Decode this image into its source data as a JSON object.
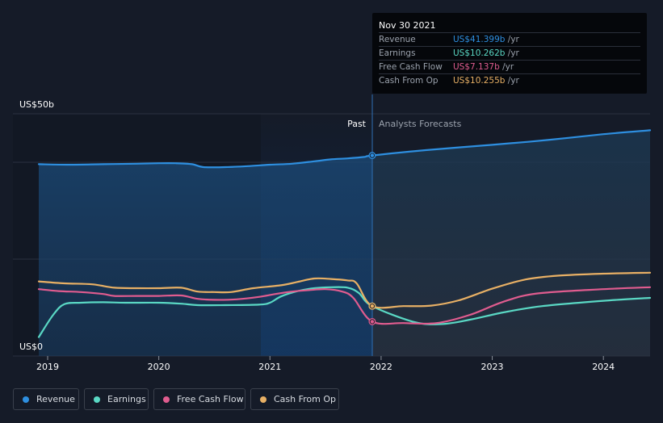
{
  "tooltip": {
    "date": "Nov 30 2021",
    "rows": [
      {
        "label": "Revenue",
        "value": "US$41.399b",
        "unit": "/yr",
        "color": "#2e8fe0"
      },
      {
        "label": "Earnings",
        "value": "US$10.262b",
        "unit": "/yr",
        "color": "#5ad8c4"
      },
      {
        "label": "Free Cash Flow",
        "value": "US$7.137b",
        "unit": "/yr",
        "color": "#e05c8f"
      },
      {
        "label": "Cash From Op",
        "value": "US$10.255b",
        "unit": "/yr",
        "color": "#e8b065"
      }
    ]
  },
  "legend": [
    {
      "label": "Revenue",
      "color": "#2e8fe0"
    },
    {
      "label": "Earnings",
      "color": "#5ad8c4"
    },
    {
      "label": "Free Cash Flow",
      "color": "#e05c8f"
    },
    {
      "label": "Cash From Op",
      "color": "#e8b065"
    }
  ],
  "chart_data": {
    "type": "line",
    "y_unit_labels": {
      "top": "US$50b",
      "bottom": "US$0"
    },
    "ylim": [
      0,
      50
    ],
    "xlim": [
      2018.92,
      2024.42
    ],
    "x_ticks": [
      2019,
      2020,
      2021,
      2022,
      2023,
      2024
    ],
    "x_tick_labels": [
      "2019",
      "2020",
      "2021",
      "2022",
      "2023",
      "2024"
    ],
    "divider_x": 2021.92,
    "past_label": "Past",
    "forecast_label": "Analysts Forecasts",
    "highlight_point_x": 2021.92,
    "series": [
      {
        "name": "Revenue",
        "color": "#2e8fe0",
        "fill": true,
        "points": [
          [
            2018.92,
            39.6
          ],
          [
            2019.2,
            39.5
          ],
          [
            2019.5,
            39.6
          ],
          [
            2019.8,
            39.7
          ],
          [
            2020.0,
            39.8
          ],
          [
            2020.15,
            39.8
          ],
          [
            2020.3,
            39.6
          ],
          [
            2020.4,
            39.0
          ],
          [
            2020.6,
            39.0
          ],
          [
            2020.8,
            39.2
          ],
          [
            2021.0,
            39.5
          ],
          [
            2021.2,
            39.7
          ],
          [
            2021.4,
            40.2
          ],
          [
            2021.55,
            40.6
          ],
          [
            2021.7,
            40.8
          ],
          [
            2021.85,
            41.1
          ],
          [
            2021.92,
            41.4
          ],
          [
            2022.4,
            42.5
          ],
          [
            2023.0,
            43.6
          ],
          [
            2023.5,
            44.6
          ],
          [
            2024.0,
            45.8
          ],
          [
            2024.42,
            46.6
          ]
        ]
      },
      {
        "name": "Earnings",
        "color": "#5ad8c4",
        "fill": false,
        "points": [
          [
            2018.92,
            3.9
          ],
          [
            2019.05,
            8.5
          ],
          [
            2019.15,
            10.7
          ],
          [
            2019.3,
            11.0
          ],
          [
            2019.5,
            11.1
          ],
          [
            2019.7,
            11.0
          ],
          [
            2020.0,
            11.0
          ],
          [
            2020.2,
            10.8
          ],
          [
            2020.35,
            10.5
          ],
          [
            2020.6,
            10.5
          ],
          [
            2020.9,
            10.6
          ],
          [
            2021.0,
            11.0
          ],
          [
            2021.1,
            12.3
          ],
          [
            2021.25,
            13.4
          ],
          [
            2021.4,
            14.0
          ],
          [
            2021.55,
            14.2
          ],
          [
            2021.7,
            14.1
          ],
          [
            2021.8,
            13.0
          ],
          [
            2021.92,
            10.3
          ],
          [
            2022.3,
            7.0
          ],
          [
            2022.55,
            6.6
          ],
          [
            2022.8,
            7.5
          ],
          [
            2023.1,
            9.0
          ],
          [
            2023.45,
            10.3
          ],
          [
            2024.0,
            11.4
          ],
          [
            2024.42,
            12.0
          ]
        ]
      },
      {
        "name": "Free Cash Flow",
        "color": "#e05c8f",
        "fill": false,
        "points": [
          [
            2018.92,
            13.8
          ],
          [
            2019.1,
            13.4
          ],
          [
            2019.3,
            13.2
          ],
          [
            2019.5,
            12.8
          ],
          [
            2019.6,
            12.4
          ],
          [
            2019.8,
            12.4
          ],
          [
            2020.0,
            12.4
          ],
          [
            2020.2,
            12.5
          ],
          [
            2020.35,
            11.8
          ],
          [
            2020.5,
            11.6
          ],
          [
            2020.7,
            11.7
          ],
          [
            2020.9,
            12.2
          ],
          [
            2021.05,
            12.8
          ],
          [
            2021.2,
            13.3
          ],
          [
            2021.35,
            13.6
          ],
          [
            2021.5,
            13.8
          ],
          [
            2021.65,
            13.3
          ],
          [
            2021.75,
            12.0
          ],
          [
            2021.92,
            7.1
          ],
          [
            2022.2,
            6.8
          ],
          [
            2022.5,
            6.8
          ],
          [
            2022.8,
            8.5
          ],
          [
            2023.1,
            11.2
          ],
          [
            2023.4,
            12.9
          ],
          [
            2024.0,
            13.8
          ],
          [
            2024.42,
            14.2
          ]
        ]
      },
      {
        "name": "Cash From Op",
        "color": "#e8b065",
        "fill": false,
        "points": [
          [
            2018.92,
            15.4
          ],
          [
            2019.15,
            15.0
          ],
          [
            2019.4,
            14.8
          ],
          [
            2019.6,
            14.1
          ],
          [
            2019.8,
            14.0
          ],
          [
            2020.0,
            14.0
          ],
          [
            2020.2,
            14.1
          ],
          [
            2020.35,
            13.3
          ],
          [
            2020.5,
            13.2
          ],
          [
            2020.65,
            13.2
          ],
          [
            2020.85,
            14.0
          ],
          [
            2021.1,
            14.6
          ],
          [
            2021.25,
            15.3
          ],
          [
            2021.4,
            16.0
          ],
          [
            2021.55,
            15.9
          ],
          [
            2021.7,
            15.6
          ],
          [
            2021.78,
            15.0
          ],
          [
            2021.92,
            10.3
          ],
          [
            2022.2,
            10.3
          ],
          [
            2022.45,
            10.4
          ],
          [
            2022.7,
            11.5
          ],
          [
            2023.0,
            13.9
          ],
          [
            2023.3,
            15.8
          ],
          [
            2023.6,
            16.6
          ],
          [
            2024.0,
            17.0
          ],
          [
            2024.42,
            17.2
          ]
        ]
      }
    ]
  }
}
